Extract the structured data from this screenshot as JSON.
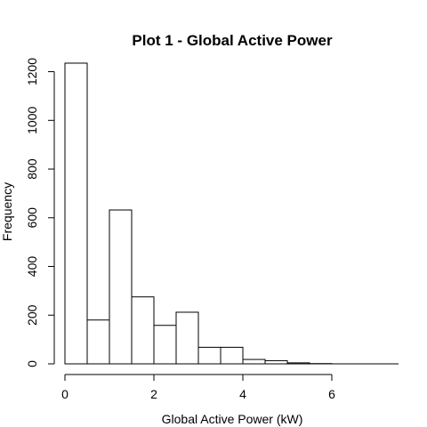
{
  "chart_data": {
    "type": "bar",
    "title": "Plot 1 - Global Active Power",
    "xlabel": "Global Active Power (kW)",
    "ylabel": "Frequency",
    "bin_width": 0.5,
    "bin_edges": [
      0,
      0.5,
      1,
      1.5,
      2,
      2.5,
      3,
      3.5,
      4,
      4.5,
      5,
      5.5,
      6,
      6.5,
      7,
      7.5
    ],
    "values": [
      1235,
      180,
      632,
      275,
      158,
      212,
      68,
      68,
      18,
      13,
      4,
      1,
      0,
      0,
      0
    ],
    "xlim": [
      0,
      7.5
    ],
    "ylim": [
      0,
      1250
    ],
    "xticks": [
      0,
      2,
      4,
      6
    ],
    "yticks": [
      0,
      200,
      400,
      600,
      800,
      1000,
      1200
    ],
    "xtick_labels": [
      "0",
      "2",
      "4",
      "6"
    ],
    "ytick_labels": [
      "0",
      "200",
      "400",
      "600",
      "800",
      "1000",
      "1200"
    ],
    "bar_fill": "#ffffff",
    "bar_stroke": "#000000",
    "grid": false,
    "legend": "none"
  }
}
